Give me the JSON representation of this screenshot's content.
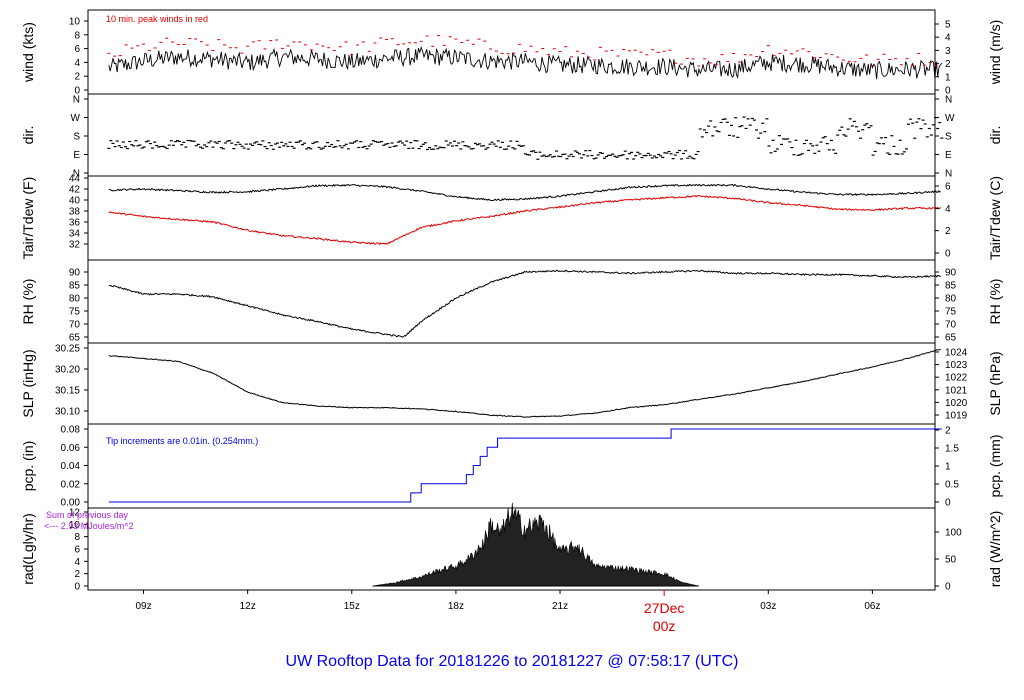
{
  "caption": "UW Rooftop Data for 20181226  to  20181227 @ 07:58:17  (UTC)",
  "colors": {
    "black": "#000000",
    "red": "#dd0000",
    "blue": "#0000dd",
    "purple": "#aa22dd"
  },
  "time_axis": {
    "ticks": [
      "09z",
      "12z",
      "15z",
      "18z",
      "21z",
      "03z",
      "06z"
    ],
    "date_label": "27Dec",
    "date_tick": "00z"
  },
  "panels": {
    "wind": {
      "ylabel_left": "wind (kts)",
      "ylabel_right": "wind (m/s)",
      "ticks_left": [
        "0",
        "2",
        "4",
        "6",
        "8",
        "10"
      ],
      "ticks_right": [
        "0",
        "1",
        "2",
        "3",
        "4",
        "5"
      ],
      "note": "10 min. peak winds in red"
    },
    "dir": {
      "ylabel_left": "dir.",
      "ylabel_right": "dir.",
      "ticks_left": [
        "N",
        "E",
        "S",
        "W",
        "N"
      ],
      "ticks_right": [
        "N",
        "E",
        "S",
        "W",
        "N"
      ]
    },
    "temp": {
      "ylabel_left": "Tair/Tdew (F)",
      "ylabel_right": "Tair/Tdew (C)",
      "ticks_left": [
        "32",
        "34",
        "36",
        "38",
        "40",
        "42",
        "44"
      ],
      "ticks_right": [
        "0",
        "2",
        "4",
        "6"
      ]
    },
    "rh": {
      "ylabel_left": "RH (%)",
      "ylabel_right": "RH (%)",
      "ticks_left": [
        "65",
        "70",
        "75",
        "80",
        "85",
        "90"
      ],
      "ticks_right": [
        "65",
        "70",
        "75",
        "80",
        "85",
        "90"
      ]
    },
    "slp": {
      "ylabel_left": "SLP (inHg)",
      "ylabel_right": "SLP (hPa)",
      "ticks_left": [
        "30.10",
        "30.15",
        "30.20",
        "30.25"
      ],
      "ticks_right": [
        "1019",
        "1020",
        "1021",
        "1022",
        "1023",
        "1024"
      ]
    },
    "pcp": {
      "ylabel_left": "pcp. (in)",
      "ylabel_right": "pcp. (mm)",
      "ticks_left": [
        "0.00",
        "0.02",
        "0.04",
        "0.06",
        "0.08"
      ],
      "ticks_right": [
        "0",
        "0.5",
        "1",
        "1.5",
        "2"
      ],
      "note": "Tip increments are 0.01in. (0.254mm.)"
    },
    "rad": {
      "ylabel_left": "rad(Lgly/hr)",
      "ylabel_right": "rad (W/m^2)",
      "ticks_left": [
        "0",
        "2",
        "4",
        "6",
        "8",
        "10",
        "12"
      ],
      "ticks_right": [
        "0",
        "50",
        "100"
      ],
      "note_line1": "Sum of previous day",
      "note_line2": "<--- 2.93 MJoules/m^2"
    }
  },
  "chart_data": {
    "type": "line",
    "x_unit": "hours UTC since 08z 26Dec 2018",
    "x_range": [
      0,
      24
    ],
    "series": [
      {
        "panel": "wind",
        "name": "wind",
        "unit": "kts",
        "ylim": [
          0,
          10.5
        ],
        "x": [
          0,
          1,
          2,
          3,
          4,
          5,
          6,
          7,
          8,
          9,
          10,
          11,
          12,
          13,
          14,
          15,
          16,
          17,
          18,
          19,
          20,
          21,
          22,
          23,
          24
        ],
        "y": [
          3.2,
          4.2,
          4.8,
          4.5,
          3.9,
          4.8,
          4.5,
          4.0,
          4.6,
          4.9,
          4.7,
          4.2,
          4.1,
          3.6,
          3.6,
          3.4,
          3.4,
          2.9,
          3.0,
          4.0,
          3.8,
          3.2,
          2.8,
          3.0,
          2.9
        ]
      },
      {
        "panel": "wind",
        "name": "10 min. peak winds",
        "unit": "kts",
        "color": "red",
        "x": [
          0,
          1,
          2,
          3,
          4,
          5,
          6,
          7,
          8,
          9,
          10,
          11,
          12,
          13,
          14,
          15,
          16,
          17,
          18,
          19,
          20,
          21,
          22,
          23,
          24
        ],
        "y": [
          5.0,
          6.2,
          6.8,
          6.4,
          6.0,
          6.9,
          6.6,
          6.0,
          6.8,
          7.2,
          6.9,
          6.2,
          6.0,
          5.4,
          5.3,
          5.0,
          5.1,
          4.4,
          4.6,
          6.0,
          5.6,
          4.8,
          4.2,
          4.5,
          4.4
        ]
      },
      {
        "panel": "dir",
        "name": "direction",
        "unit": "compass",
        "x": [
          0,
          2,
          4,
          6,
          8,
          10,
          12,
          14,
          16,
          17,
          18,
          19,
          20,
          21,
          22,
          23,
          24
        ],
        "y": [
          "SE",
          "SE",
          "SE",
          "SE",
          "SE",
          "SE",
          "E",
          "E",
          "E",
          "SW",
          "SW",
          "SE",
          "SE",
          "SW",
          "SE",
          "SW",
          "SE"
        ]
      },
      {
        "panel": "temp",
        "name": "Tair",
        "unit": "F",
        "ylim": [
          31,
          44
        ],
        "x": [
          0,
          1,
          2,
          3,
          4,
          5,
          6,
          7,
          8,
          9,
          10,
          11,
          12,
          13,
          14,
          15,
          16,
          17,
          18,
          19,
          20,
          21,
          22,
          23,
          24
        ],
        "y": [
          41.8,
          42.0,
          41.7,
          41.4,
          41.5,
          42.0,
          42.6,
          42.7,
          42.4,
          41.6,
          40.6,
          40.0,
          40.2,
          40.7,
          41.5,
          42.3,
          42.6,
          42.7,
          42.7,
          42.0,
          41.4,
          41.0,
          41.0,
          41.2,
          41.6
        ]
      },
      {
        "panel": "temp",
        "name": "Tdew",
        "unit": "F",
        "color": "red",
        "x": [
          0,
          1,
          2,
          3,
          4,
          5,
          6,
          7,
          8,
          9,
          10,
          11,
          12,
          13,
          14,
          15,
          16,
          17,
          18,
          19,
          20,
          21,
          22,
          23,
          24
        ],
        "y": [
          37.8,
          37.0,
          36.5,
          36.0,
          34.5,
          33.5,
          33.0,
          32.3,
          32.0,
          35.0,
          36.2,
          37.0,
          38.0,
          38.7,
          39.5,
          40.0,
          40.4,
          40.7,
          40.3,
          39.5,
          39.0,
          38.3,
          38.2,
          38.5,
          38.5
        ]
      },
      {
        "panel": "rh",
        "name": "RH",
        "unit": "%",
        "ylim": [
          64,
          92
        ],
        "x": [
          0,
          1,
          2,
          3,
          4,
          5,
          6,
          7,
          8,
          8.5,
          9,
          10,
          11,
          12,
          13,
          14,
          15,
          16,
          17,
          18,
          19,
          20,
          21,
          22,
          23,
          24
        ],
        "y": [
          85,
          81.5,
          81.5,
          80.5,
          77,
          73.5,
          71,
          68,
          66,
          65,
          71,
          80,
          86,
          90,
          90.5,
          90,
          89.5,
          90,
          90.5,
          89.5,
          89.5,
          89,
          89,
          88.5,
          88,
          88.5
        ]
      },
      {
        "panel": "slp",
        "name": "SLP",
        "unit": "inHg",
        "ylim": [
          30.08,
          30.255
        ],
        "x": [
          0,
          1,
          2,
          3,
          4,
          5,
          6,
          7,
          8,
          9,
          10,
          11,
          12,
          13,
          14,
          15,
          16,
          17,
          18,
          19,
          20,
          21,
          22,
          23,
          24
        ],
        "y": [
          30.232,
          30.225,
          30.218,
          30.19,
          30.145,
          30.12,
          30.112,
          30.108,
          30.108,
          30.105,
          30.099,
          30.09,
          30.086,
          30.088,
          30.095,
          30.108,
          30.115,
          30.128,
          30.14,
          30.155,
          30.17,
          30.188,
          30.205,
          30.225,
          30.248
        ]
      },
      {
        "panel": "pcp",
        "name": "accumulated precipitation",
        "unit": "in",
        "ylim": [
          0,
          0.08
        ],
        "x": [
          0,
          8.7,
          9.0,
          9.3,
          10.3,
          10.5,
          10.7,
          10.9,
          11.2,
          16.2,
          24
        ],
        "y": [
          0,
          0.01,
          0.02,
          0.02,
          0.03,
          0.04,
          0.05,
          0.06,
          0.07,
          0.08,
          0.08
        ]
      },
      {
        "panel": "rad",
        "name": "solar radiation",
        "unit": "Lgly/hr",
        "ylim": [
          0,
          12
        ],
        "x": [
          7.6,
          8.2,
          9.0,
          9.5,
          10.0,
          10.4,
          10.8,
          11.0,
          11.3,
          11.6,
          12.0,
          12.5,
          13.0,
          13.5,
          14.0,
          14.5,
          15.0,
          15.5,
          16.0,
          16.5,
          17.0
        ],
        "y": [
          0,
          0.5,
          1.5,
          2.5,
          3.2,
          4.5,
          7.0,
          10.0,
          8.5,
          12.0,
          9.2,
          10.5,
          5.5,
          6.5,
          3.2,
          3.0,
          2.8,
          2.3,
          2.0,
          0.6,
          0
        ]
      }
    ]
  }
}
